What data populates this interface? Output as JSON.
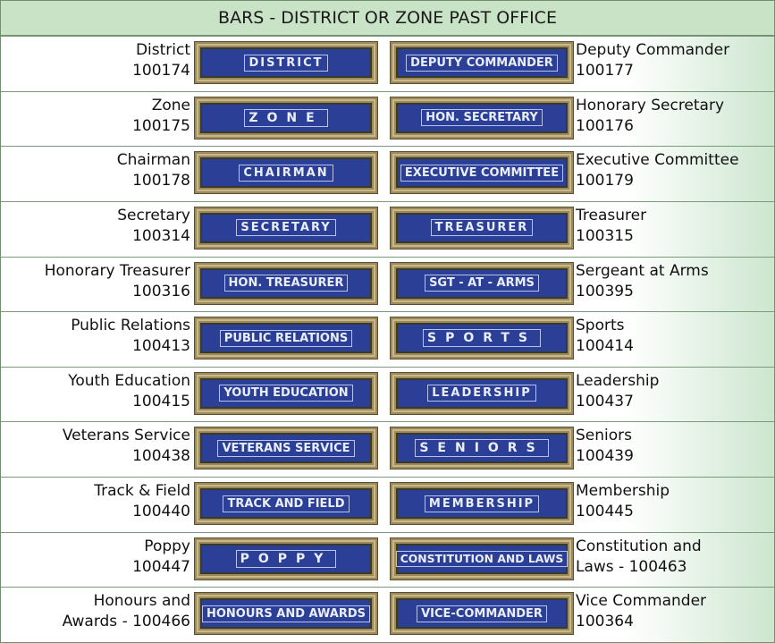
{
  "header": {
    "title": "BARS - DISTRICT OR ZONE PAST OFFICE"
  },
  "rows": [
    {
      "left": [
        "District",
        "100174"
      ],
      "left_bar": "DISTRICT",
      "right_bar": "DEPUTY COMMANDER",
      "right": [
        "Deputy Commander",
        "100177"
      ]
    },
    {
      "left": [
        "Zone",
        "100175"
      ],
      "left_bar": "ZONE",
      "right_bar": "HON. SECRETARY",
      "right": [
        "Honorary Secretary",
        "100176"
      ]
    },
    {
      "left": [
        "Chairman",
        "100178"
      ],
      "left_bar": "CHAIRMAN",
      "right_bar": "EXECUTIVE COMMITTEE",
      "right": [
        "Executive Committee",
        "100179"
      ]
    },
    {
      "left": [
        "Secretary",
        "100314"
      ],
      "left_bar": "SECRETARY",
      "right_bar": "TREASURER",
      "right": [
        "Treasurer",
        "100315"
      ]
    },
    {
      "left": [
        "Honorary Treasurer",
        "100316"
      ],
      "left_bar": "HON. TREASURER",
      "right_bar": "SGT - AT - ARMS",
      "right": [
        "Sergeant at Arms",
        "100395"
      ]
    },
    {
      "left": [
        "Public Relations",
        "100413"
      ],
      "left_bar": "PUBLIC RELATIONS",
      "right_bar": "SPORTS",
      "right": [
        "Sports",
        "100414"
      ]
    },
    {
      "left": [
        "Youth Education",
        "100415"
      ],
      "left_bar": "YOUTH EDUCATION",
      "right_bar": "LEADERSHIP",
      "right": [
        "Leadership",
        "100437"
      ]
    },
    {
      "left": [
        "Veterans Service",
        "100438"
      ],
      "left_bar": "VETERANS SERVICE",
      "right_bar": "SENIORS",
      "right": [
        "Seniors",
        "100439"
      ]
    },
    {
      "left": [
        "Track & Field",
        "100440"
      ],
      "left_bar": "TRACK AND FIELD",
      "right_bar": "MEMBERSHIP",
      "right": [
        "Membership",
        "100445"
      ]
    },
    {
      "left": [
        "Poppy",
        "100447"
      ],
      "left_bar": "POPPY",
      "right_bar": "CONSTITUTION AND LAWS",
      "right": [
        "Constitution and",
        "Laws - 100463"
      ]
    },
    {
      "left": [
        "Honours and",
        "Awards - 100466"
      ],
      "left_bar": "HONOURS AND AWARDS",
      "right_bar": "VICE-COMMANDER",
      "right": [
        "Vice Commander",
        "100364"
      ]
    }
  ]
}
